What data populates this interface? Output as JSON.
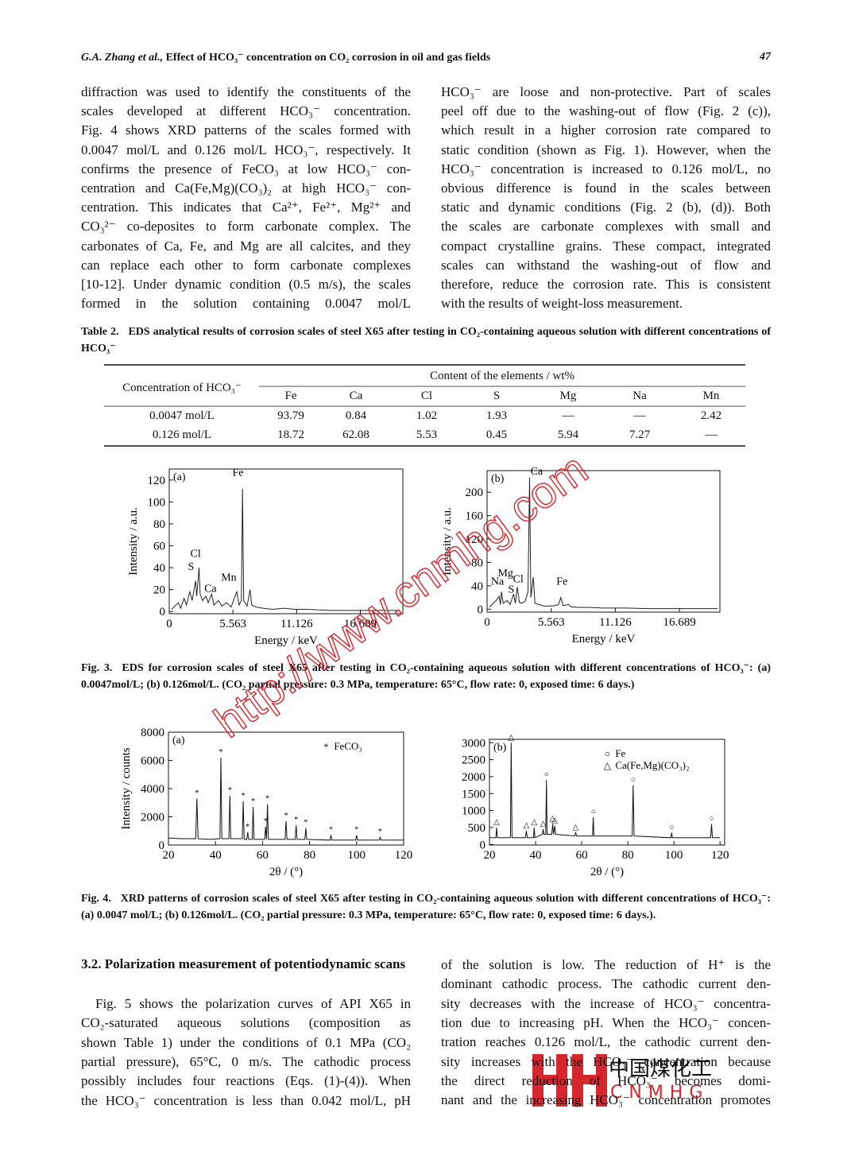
{
  "header": {
    "authors": "G.A. Zhang et al.,",
    "title": "Effect of HCO₃⁻ concentration on CO₂ corrosion in oil and gas fields",
    "page": "47"
  },
  "body_top": {
    "left": [
      "diffraction was used to identify the constituents of the",
      "scales developed at different HCO₃⁻ concentration.",
      "Fig. 4 shows XRD patterns of the scales formed with",
      "0.0047 mol/L and 0.126 mol/L HCO₃⁻, respectively. It",
      "confirms the presence of FeCO₃ at low HCO₃⁻ con-",
      "centration and Ca(Fe,Mg)(CO₃)₂ at high HCO₃⁻ con-",
      "centration. This indicates that Ca²⁺, Fe²⁺, Mg²⁺ and",
      "CO₃²⁻ co-deposites to form carbonate complex. The",
      "carbonates of Ca, Fe, and Mg are all calcites, and they",
      "can replace each other to form carbonate complexes",
      "[10-12]. Under dynamic condition (0.5 m/s), the scales",
      "formed in the solution containing 0.0047 mol/L"
    ],
    "right": [
      "HCO₃⁻ are loose and non-protective. Part of scales",
      "peel off due to the washing-out of flow (Fig. 2 (c)),",
      "which result in a higher corrosion rate compared to",
      "static condition (shown as Fig. 1). However, when the",
      "HCO₃⁻ concentration is increased to 0.126 mol/L, no",
      "obvious difference is found in the scales between",
      "static and dynamic conditions (Fig. 2 (b), (d)). Both",
      "the scales are carbonate complexes with small and",
      "compact crystalline grains. These compact, integrated",
      "scales can withstand the washing-out of flow and",
      "therefore, reduce the corrosion rate. This is consistent",
      "with the results of weight-loss measurement."
    ]
  },
  "table": {
    "label": "Table 2.",
    "caption": "EDS analytical results of corrosion scales of steel X65 after testing in CO₂-containing aqueous solution with different concentrations of HCO₃⁻",
    "row_header": "Concentration of HCO₃⁻",
    "group_header": "Content of the elements / wt%",
    "columns": [
      "Fe",
      "Ca",
      "Cl",
      "S",
      "Mg",
      "Na",
      "Mn"
    ],
    "rows": [
      [
        "0.0047 mol/L",
        93.79,
        0.84,
        1.02,
        1.93,
        "—",
        "—",
        2.42
      ],
      [
        "0.126 mol/L",
        18.72,
        62.08,
        5.53,
        0.45,
        5.94,
        7.27,
        "—"
      ]
    ]
  },
  "figure3": {
    "label": "Fig. 3.",
    "caption": "EDS for corrosion scales of steel X65 after testing in CO₂-containing aqueous solution with different concentrations of HCO₃⁻: (a) 0.0047mol/L; (b) 0.126mol/L. (CO₂ partial pressure: 0.3 MPa, temperature: 65°C, flow rate: 0, exposed time: 6 days.)",
    "panels": [
      {
        "type": "line",
        "tag": "(a)",
        "xlabel": "Energy / keV",
        "ylabel": "Intensity / a.u.",
        "xlim": [
          0,
          20.4
        ],
        "ylim": [
          -2,
          130
        ],
        "xticks": [
          0,
          5.563,
          11.126,
          16.689
        ],
        "yticks": [
          0,
          20,
          40,
          60,
          80,
          100,
          120
        ],
        "color": "#222222",
        "x": [
          0.2,
          0.5,
          0.8,
          1.0,
          1.3,
          1.5,
          1.8,
          2.0,
          2.2,
          2.3,
          2.4,
          2.6,
          2.7,
          2.9,
          3.2,
          3.4,
          3.7,
          3.9,
          4.3,
          4.6,
          5.0,
          5.4,
          5.9,
          6.1,
          6.3,
          6.4,
          6.5,
          6.8,
          7.06,
          7.2,
          7.6,
          8.2,
          9,
          10,
          11,
          12,
          14,
          16,
          18,
          20
        ],
        "values": [
          2,
          5,
          8,
          3,
          12,
          6,
          18,
          10,
          22,
          28,
          14,
          40,
          16,
          10,
          14,
          8,
          16,
          6,
          10,
          5,
          8,
          4,
          18,
          6,
          10,
          112,
          10,
          5,
          20,
          6,
          4,
          3,
          2,
          3,
          2,
          2,
          1,
          1,
          1,
          1
        ],
        "annotations": [
          "Fe",
          "Cl",
          "S",
          "Ca",
          "Mn"
        ]
      },
      {
        "type": "line",
        "tag": "(b)",
        "xlabel": "Energy / keV",
        "ylabel": "Intensity / a.u.",
        "xlim": [
          0,
          20.2
        ],
        "ylim": [
          -5,
          237
        ],
        "xticks": [
          0,
          5.563,
          11.126,
          16.689
        ],
        "yticks": [
          0,
          40,
          80,
          120,
          160,
          200
        ],
        "color": "#222222",
        "x": [
          0.2,
          0.5,
          0.8,
          1.04,
          1.15,
          1.25,
          1.4,
          1.75,
          2.0,
          2.3,
          2.45,
          2.62,
          2.8,
          3.0,
          3.3,
          3.55,
          3.69,
          3.8,
          4.01,
          4.15,
          4.5,
          5.0,
          5.9,
          6.2,
          6.4,
          6.6,
          7.06,
          7.3,
          8,
          9,
          10,
          12,
          14,
          17,
          20
        ],
        "values": [
          3,
          10,
          15,
          22,
          8,
          30,
          10,
          15,
          8,
          26,
          10,
          38,
          12,
          10,
          14,
          30,
          225,
          20,
          55,
          10,
          8,
          5,
          6,
          8,
          20,
          6,
          8,
          4,
          3,
          3,
          2,
          2,
          1,
          1,
          1
        ],
        "annotations": [
          "Ca",
          "Mg",
          "Cl",
          "Na",
          "S",
          "Fe"
        ]
      }
    ]
  },
  "figure4": {
    "label": "Fig. 4.",
    "caption": "XRD patterns of corrosion scales of steel X65 after testing in CO₂-containing aqueous solution with different concentrations of HCO₃⁻: (a) 0.0047 mol/L; (b) 0.126mol/L. (CO₂ partial pressure: 0.3 MPa, temperature: 65°C, flow rate: 0, exposed time: 6 days.).",
    "panels": [
      {
        "type": "line",
        "tag": "(a)",
        "xlabel": "2θ / (°)",
        "ylabel": "Intensity / counts",
        "xlim": [
          20,
          120
        ],
        "ylim": [
          0,
          8000
        ],
        "xticks": [
          20,
          40,
          60,
          80,
          100,
          120
        ],
        "yticks": [
          0,
          2000,
          4000,
          6000,
          8000
        ],
        "color": "#111111",
        "x": [
          20,
          25,
          31.6,
          32.1,
          32.6,
          38,
          41.9,
          42.3,
          42.7,
          45.7,
          46.1,
          46.5,
          51.4,
          51.8,
          52.2,
          53.3,
          53.7,
          54.1,
          55.6,
          56,
          56.4,
          60.9,
          61.3,
          61.7,
          62.1,
          62.5,
          69.6,
          70,
          70.4,
          73.9,
          74.3,
          74.7,
          78,
          78.4,
          78.8,
          88.7,
          89.1,
          89.5,
          99.6,
          100,
          100.4,
          109.6,
          110,
          110.4,
          115,
          120
        ],
        "values": [
          500,
          450,
          450,
          3300,
          450,
          400,
          450,
          6200,
          450,
          450,
          3500,
          450,
          450,
          3100,
          400,
          400,
          900,
          400,
          400,
          2700,
          400,
          400,
          1300,
          400,
          2900,
          400,
          400,
          1700,
          400,
          400,
          1400,
          400,
          400,
          1200,
          400,
          350,
          700,
          350,
          350,
          700,
          350,
          350,
          550,
          350,
          350,
          350
        ],
        "legend": [
          {
            "marker": "*",
            "name": "FeCO₃",
            "peaks": [
              32.1,
              42.3,
              46.1,
              51.8,
              53.7,
              56,
              61.3,
              62.1,
              70,
              74.3,
              78.4,
              89.1,
              100,
              110
            ]
          }
        ]
      },
      {
        "type": "line",
        "tag": "(b)",
        "xlabel": "2θ / (°)",
        "ylabel": "",
        "xlim": [
          20,
          122
        ],
        "ylim": [
          -16,
          3100
        ],
        "xticks": [
          20,
          40,
          60,
          80,
          100,
          120
        ],
        "yticks": [
          0,
          500,
          1000,
          1500,
          2000,
          2500,
          3000
        ],
        "color": "#111111",
        "x": [
          20,
          22.8,
          23.1,
          23.4,
          29.1,
          29.4,
          29.8,
          35.6,
          36,
          36.4,
          39.1,
          39.4,
          39.7,
          43,
          43.3,
          43.6,
          44.4,
          44.7,
          45.0,
          47,
          47.4,
          47.8,
          48.3,
          48.7,
          57,
          57.4,
          57.8,
          64.7,
          65,
          65.3,
          81.9,
          82.3,
          82.7,
          98.7,
          99,
          99.3,
          115.9,
          116.3,
          116.7,
          120
        ],
        "values": [
          200,
          200,
          500,
          200,
          200,
          3000,
          200,
          200,
          400,
          200,
          200,
          500,
          200,
          300,
          450,
          300,
          300,
          1900,
          300,
          300,
          600,
          300,
          550,
          300,
          250,
          350,
          250,
          250,
          800,
          250,
          250,
          1750,
          250,
          200,
          350,
          200,
          200,
          600,
          200,
          200
        ],
        "legend": [
          {
            "marker": "○",
            "name": "Fe",
            "peaks": [
              44.7,
              65,
              82.3,
              99,
              116.3
            ]
          },
          {
            "marker": "△",
            "name": "Ca(Fe,Mg)(CO₃)₂",
            "peaks": [
              23.1,
              29.4,
              36,
              39.4,
              43.3,
              47.4,
              48.3,
              57.4
            ]
          }
        ]
      }
    ]
  },
  "section": {
    "heading": "3.2. Polarization measurement of potentiodynamic scans",
    "left": [
      "Fig. 5 shows the polarization curves of API X65 in",
      "CO₂-saturated aqueous solutions (composition as",
      "shown Table 1) under the conditions of 0.1 MPa (CO₂",
      "partial pressure), 65°C, 0 m/s. The cathodic process",
      "possibly includes four reactions (Eqs. (1)-(4)). When",
      "the HCO₃⁻ concentration is less than 0.042 mol/L, pH"
    ],
    "right": [
      "of the solution is low. The reduction of H⁺ is the",
      "dominant cathodic process. The cathodic current den-",
      "sity decreases with the increase of HCO₃⁻ concentra-",
      "tion due to increasing pH. When the HCO₃⁻ concen-",
      "tration reaches 0.126 mol/L, the cathodic current den-",
      "sity increases with the HCO₃⁻ concentration because",
      "the direct reduction of HCO₃⁻ becomes domi-",
      "nant and the increasing HCO₃⁻ concentration promotes"
    ]
  },
  "watermark": "http://www.cnmhg.com",
  "logo": {
    "chinese": "中国煤化工",
    "latin": "CNMHG"
  }
}
